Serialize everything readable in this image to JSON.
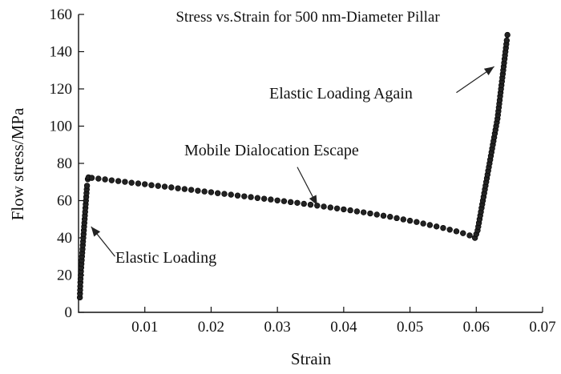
{
  "chart_data": {
    "type": "scatter",
    "title": "Stress vs.Strain for 500 nm-Diameter Pillar",
    "xlabel": "Strain",
    "ylabel": "Flow stress/MPa",
    "xlim": [
      0,
      0.07
    ],
    "ylim": [
      0,
      160
    ],
    "xticks": [
      0.01,
      0.02,
      0.03,
      0.04,
      0.05,
      0.06,
      0.07
    ],
    "xtick_labels": [
      "0.01",
      "0.02",
      "0.03",
      "0.04",
      "0.05",
      "0.06",
      "0.07"
    ],
    "yticks": [
      0,
      20,
      40,
      60,
      80,
      100,
      120,
      140,
      160
    ],
    "ytick_labels": [
      "0",
      "20",
      "40",
      "60",
      "80",
      "100",
      "120",
      "140",
      "160"
    ],
    "grid": false,
    "series": [
      {
        "points": [
          [
            0.0002,
            8
          ],
          [
            0.00024,
            12
          ],
          [
            0.00028,
            16
          ],
          [
            0.00033,
            20
          ],
          [
            0.0004,
            24
          ],
          [
            0.00048,
            28
          ],
          [
            0.00056,
            32
          ],
          [
            0.00064,
            36
          ],
          [
            0.00072,
            40
          ],
          [
            0.0008,
            44
          ],
          [
            0.00088,
            48
          ],
          [
            0.00096,
            52
          ],
          [
            0.00104,
            56
          ],
          [
            0.00112,
            60
          ],
          [
            0.0012,
            64
          ],
          [
            0.00128,
            68
          ],
          [
            0.0014,
            71.5
          ],
          [
            0.0015,
            72.5
          ],
          [
            0.002,
            72.2
          ],
          [
            0.003,
            71.8
          ],
          [
            0.004,
            71.4
          ],
          [
            0.005,
            70.9
          ],
          [
            0.006,
            70.5
          ],
          [
            0.007,
            70.1
          ],
          [
            0.008,
            69.6
          ],
          [
            0.009,
            69.2
          ],
          [
            0.01,
            68.8
          ],
          [
            0.011,
            68.3
          ],
          [
            0.012,
            67.9
          ],
          [
            0.013,
            67.5
          ],
          [
            0.014,
            67.1
          ],
          [
            0.015,
            66.6
          ],
          [
            0.016,
            66.2
          ],
          [
            0.017,
            65.8
          ],
          [
            0.018,
            65.3
          ],
          [
            0.019,
            64.9
          ],
          [
            0.02,
            64.5
          ],
          [
            0.021,
            64.0
          ],
          [
            0.022,
            63.6
          ],
          [
            0.023,
            63.2
          ],
          [
            0.024,
            62.7
          ],
          [
            0.025,
            62.3
          ],
          [
            0.026,
            61.9
          ],
          [
            0.027,
            61.4
          ],
          [
            0.028,
            61.0
          ],
          [
            0.029,
            60.6
          ],
          [
            0.03,
            60.1
          ],
          [
            0.031,
            59.7
          ],
          [
            0.032,
            59.2
          ],
          [
            0.033,
            58.8
          ],
          [
            0.034,
            58.3
          ],
          [
            0.035,
            57.8
          ],
          [
            0.036,
            57.3
          ],
          [
            0.037,
            56.8
          ],
          [
            0.038,
            56.3
          ],
          [
            0.039,
            55.8
          ],
          [
            0.04,
            55.3
          ],
          [
            0.041,
            54.8
          ],
          [
            0.042,
            54.2
          ],
          [
            0.043,
            53.7
          ],
          [
            0.044,
            53.1
          ],
          [
            0.045,
            52.5
          ],
          [
            0.046,
            51.9
          ],
          [
            0.047,
            51.3
          ],
          [
            0.048,
            50.6
          ],
          [
            0.049,
            49.9
          ],
          [
            0.05,
            49.2
          ],
          [
            0.051,
            48.5
          ],
          [
            0.052,
            47.7
          ],
          [
            0.053,
            46.9
          ],
          [
            0.054,
            46.1
          ],
          [
            0.055,
            45.3
          ],
          [
            0.056,
            44.4
          ],
          [
            0.057,
            43.5
          ],
          [
            0.058,
            42.5
          ],
          [
            0.059,
            41.3
          ],
          [
            0.0598,
            40.0
          ],
          [
            0.0602,
            44
          ],
          [
            0.0605,
            50
          ],
          [
            0.0608,
            56
          ],
          [
            0.0611,
            62
          ],
          [
            0.0614,
            68
          ],
          [
            0.0617,
            74
          ],
          [
            0.062,
            80
          ],
          [
            0.0623,
            86
          ],
          [
            0.0626,
            92
          ],
          [
            0.0629,
            98
          ],
          [
            0.0632,
            104
          ],
          [
            0.0634,
            110
          ],
          [
            0.0636,
            116
          ],
          [
            0.0638,
            122
          ],
          [
            0.064,
            128
          ],
          [
            0.0642,
            134
          ],
          [
            0.0644,
            140
          ],
          [
            0.0646,
            146
          ],
          [
            0.0647,
            149
          ]
        ]
      }
    ],
    "annotations": [
      {
        "text": "Elastic Loading",
        "from": [
          0.0055,
          30
        ],
        "to": [
          0.0019,
          46
        ]
      },
      {
        "text": "Mobile Dialocation Escape",
        "from": [
          0.033,
          78
        ],
        "to": [
          0.036,
          57.5
        ]
      },
      {
        "text": "Elastic Loading Again",
        "from": [
          0.057,
          118
        ],
        "to": [
          0.0627,
          132
        ]
      }
    ]
  }
}
